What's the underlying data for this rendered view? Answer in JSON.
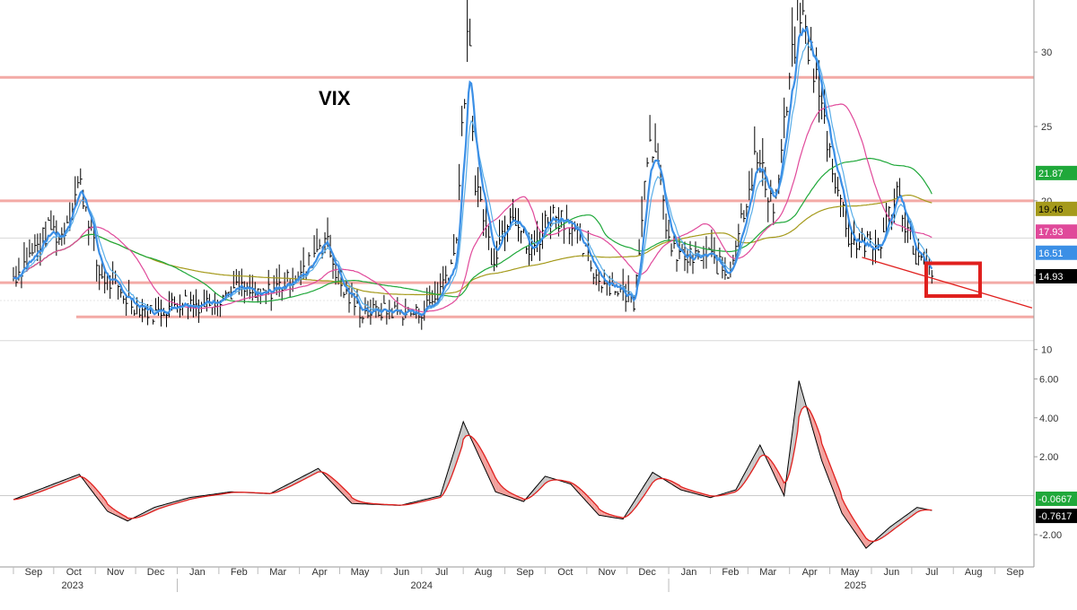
{
  "chart_data": [
    {
      "type": "line",
      "title": "VIX",
      "ylim": [
        9.5,
        33.5
      ],
      "y_ticks": [
        10,
        15,
        20,
        25,
        30
      ],
      "y_tick_labels": [
        "10",
        "",
        "20",
        "25",
        "30"
      ],
      "x_months": [
        "Sep",
        "Oct",
        "Nov",
        "Dec",
        "Jan",
        "Feb",
        "Mar",
        "Apr",
        "May",
        "Jun",
        "Jul",
        "Aug",
        "Sep",
        "Oct",
        "Nov",
        "Dec",
        "Jan",
        "Feb",
        "Mar",
        "Apr",
        "May",
        "Jun",
        "Jul",
        "Aug",
        "Sep"
      ],
      "x_years": [
        "2023",
        "2024",
        "2025"
      ],
      "grid": false,
      "latest_badges": [
        {
          "label": "21.87",
          "value": 21.87,
          "color": "#1fa83a",
          "text_color": "#ffffff"
        },
        {
          "label": "19.46",
          "value": 19.46,
          "color": "#a59a1b",
          "text_color": "#000000"
        },
        {
          "label": "17.93",
          "value": 17.93,
          "color": "#e0499a",
          "text_color": "#ffffff"
        },
        {
          "label": "16.51",
          "value": 16.51,
          "color": "#3b8fe6",
          "text_color": "#ffffff"
        },
        {
          "label": "14.93",
          "value": 14.93,
          "color": "#000000",
          "text_color": "#ffffff"
        }
      ],
      "horizontal_levels": [
        28.3,
        20.0,
        14.5,
        12.2
      ],
      "series": [
        {
          "key": "vix_ohlc",
          "color": "#000000",
          "points": [
            [
              "2023-09-01",
              14.8
            ],
            [
              "2023-09-15",
              16.5
            ],
            [
              "2023-09-29",
              18.2
            ],
            [
              "2023-10-06",
              17.4
            ],
            [
              "2023-10-20",
              21.3
            ],
            [
              "2023-10-27",
              19.0
            ],
            [
              "2023-11-03",
              15.2
            ],
            [
              "2023-11-17",
              14.0
            ],
            [
              "2023-12-01",
              12.9
            ],
            [
              "2023-12-15",
              12.4
            ],
            [
              "2024-01-05",
              13.3
            ],
            [
              "2024-01-19",
              13.0
            ],
            [
              "2024-02-02",
              13.6
            ],
            [
              "2024-02-16",
              14.1
            ],
            [
              "2024-03-01",
              13.5
            ],
            [
              "2024-03-15",
              14.2
            ],
            [
              "2024-04-05",
              15.2
            ],
            [
              "2024-04-19",
              17.8
            ],
            [
              "2024-05-03",
              14.0
            ],
            [
              "2024-05-17",
              12.5
            ],
            [
              "2024-06-07",
              12.6
            ],
            [
              "2024-06-28",
              12.4
            ],
            [
              "2024-07-12",
              13.5
            ],
            [
              "2024-07-26",
              16.5
            ],
            [
              "2024-08-05",
              32.0
            ],
            [
              "2024-08-09",
              22.0
            ],
            [
              "2024-08-23",
              16.0
            ],
            [
              "2024-09-06",
              19.8
            ],
            [
              "2024-09-20",
              16.2
            ],
            [
              "2024-10-04",
              19.2
            ],
            [
              "2024-10-18",
              18.8
            ],
            [
              "2024-11-08",
              14.9
            ],
            [
              "2024-11-22",
              14.2
            ],
            [
              "2024-12-06",
              13.3
            ],
            [
              "2024-12-18",
              25.0
            ],
            [
              "2025-01-03",
              16.5
            ],
            [
              "2025-01-17",
              16.1
            ],
            [
              "2025-01-31",
              16.3
            ],
            [
              "2025-02-14",
              15.0
            ],
            [
              "2025-03-07",
              23.0
            ],
            [
              "2025-03-21",
              19.5
            ],
            [
              "2025-04-08",
              33.0
            ],
            [
              "2025-04-18",
              29.5
            ],
            [
              "2025-05-02",
              22.8
            ],
            [
              "2025-05-16",
              17.3
            ],
            [
              "2025-06-06",
              16.8
            ],
            [
              "2025-06-20",
              20.7
            ],
            [
              "2025-07-03",
              16.4
            ],
            [
              "2025-07-16",
              14.93
            ]
          ]
        },
        {
          "key": "ma_fast",
          "color": "#3b8fe6"
        },
        {
          "key": "ma_slow",
          "color": "#5aaee8"
        },
        {
          "key": "ma_pink",
          "color": "#e0499a"
        },
        {
          "key": "ma_green",
          "color": "#1fa83a"
        },
        {
          "key": "ma_olive",
          "color": "#a59a1b"
        }
      ],
      "annotations": [
        {
          "type": "trendline",
          "color": "#e0201e"
        },
        {
          "type": "box",
          "color": "#e0201e"
        }
      ]
    },
    {
      "type": "area",
      "ylim": [
        -3.2,
        6.8
      ],
      "y_ticks": [
        -2,
        2,
        4,
        6
      ],
      "y_tick_labels": [
        "-2.00",
        "2.00",
        "4.00",
        "6.00"
      ],
      "latest_badges": [
        {
          "label": "-0.0667",
          "value": -0.0667,
          "color": "#1fa83a",
          "text_color": "#ffffff"
        },
        {
          "label": "-0.7617",
          "value": -0.7617,
          "color": "#000000",
          "text_color": "#ffffff"
        }
      ],
      "series": [
        {
          "key": "oscillator",
          "color": "#000000",
          "points": [
            [
              "2023-09-01",
              -0.2
            ],
            [
              "2023-10-01",
              0.6
            ],
            [
              "2023-10-20",
              1.1
            ],
            [
              "2023-11-10",
              -0.8
            ],
            [
              "2023-11-25",
              -1.3
            ],
            [
              "2023-12-15",
              -0.6
            ],
            [
              "2024-01-10",
              -0.1
            ],
            [
              "2024-02-10",
              0.2
            ],
            [
              "2024-03-10",
              0.1
            ],
            [
              "2024-04-15",
              1.4
            ],
            [
              "2024-05-10",
              -0.4
            ],
            [
              "2024-06-15",
              -0.5
            ],
            [
              "2024-07-15",
              0.0
            ],
            [
              "2024-08-01",
              3.8
            ],
            [
              "2024-08-25",
              0.2
            ],
            [
              "2024-09-15",
              -0.3
            ],
            [
              "2024-10-01",
              1.0
            ],
            [
              "2024-10-20",
              0.6
            ],
            [
              "2024-11-10",
              -1.0
            ],
            [
              "2024-11-28",
              -1.2
            ],
            [
              "2024-12-20",
              1.2
            ],
            [
              "2025-01-10",
              0.3
            ],
            [
              "2025-02-01",
              -0.1
            ],
            [
              "2025-02-20",
              0.3
            ],
            [
              "2025-03-10",
              2.6
            ],
            [
              "2025-03-28",
              0.0
            ],
            [
              "2025-04-08",
              5.9
            ],
            [
              "2025-04-25",
              1.8
            ],
            [
              "2025-05-10",
              -0.9
            ],
            [
              "2025-05-28",
              -2.7
            ],
            [
              "2025-06-15",
              -1.6
            ],
            [
              "2025-07-05",
              -0.6
            ],
            [
              "2025-07-16",
              -0.76
            ]
          ]
        },
        {
          "key": "signal",
          "color": "#e0201e"
        }
      ]
    }
  ]
}
